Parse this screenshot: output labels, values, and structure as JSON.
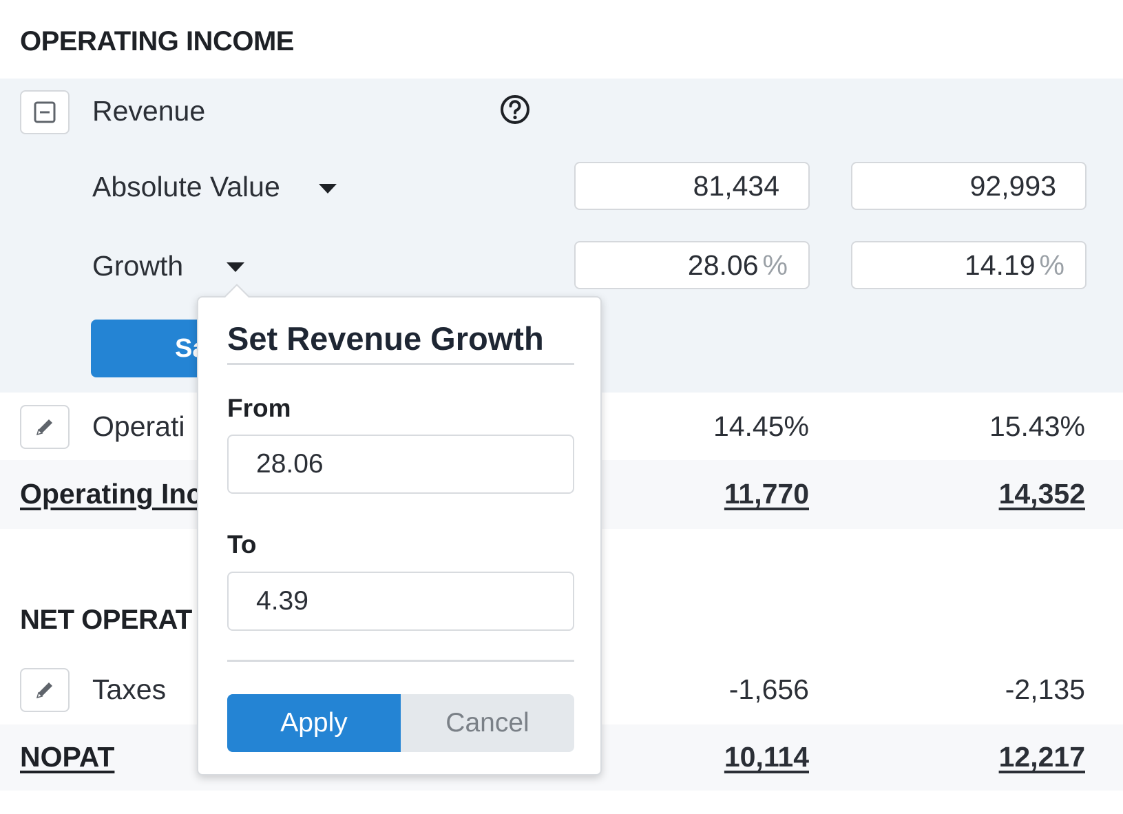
{
  "sections": {
    "operating_income_title": "OPERATING INCOME",
    "net_operating_title": "NET OPERAT"
  },
  "revenue": {
    "label": "Revenue",
    "help_icon": "question-circle-icon",
    "collapse_icon": "minus-square-icon",
    "absolute": {
      "label": "Absolute Value",
      "values": [
        "81,434",
        "92,993"
      ]
    },
    "growth": {
      "label": "Growth",
      "values": [
        "28.06",
        "14.19"
      ],
      "unit": "%"
    },
    "save_label": "Sa"
  },
  "operating_margin": {
    "label": "Operati",
    "edit_icon": "pencil-icon",
    "values": [
      "14.45%",
      "15.43%"
    ]
  },
  "operating_income_total": {
    "label": "Operating Inc",
    "values": [
      "11,770",
      "14,352"
    ]
  },
  "taxes": {
    "label": "Taxes",
    "edit_icon": "pencil-icon",
    "values": [
      "-1,656",
      "-2,135"
    ]
  },
  "nopat": {
    "label": "NOPAT",
    "values": [
      "10,114",
      "12,217"
    ]
  },
  "popover": {
    "title": "Set Revenue Growth",
    "from_label": "From",
    "from_value": "28.06",
    "to_label": "To",
    "to_value": "4.39",
    "unit": "%",
    "apply_label": "Apply",
    "cancel_label": "Cancel"
  },
  "colors": {
    "accent": "#2484d4",
    "panel_bg": "#f0f4f8",
    "text": "#2b2f36"
  }
}
